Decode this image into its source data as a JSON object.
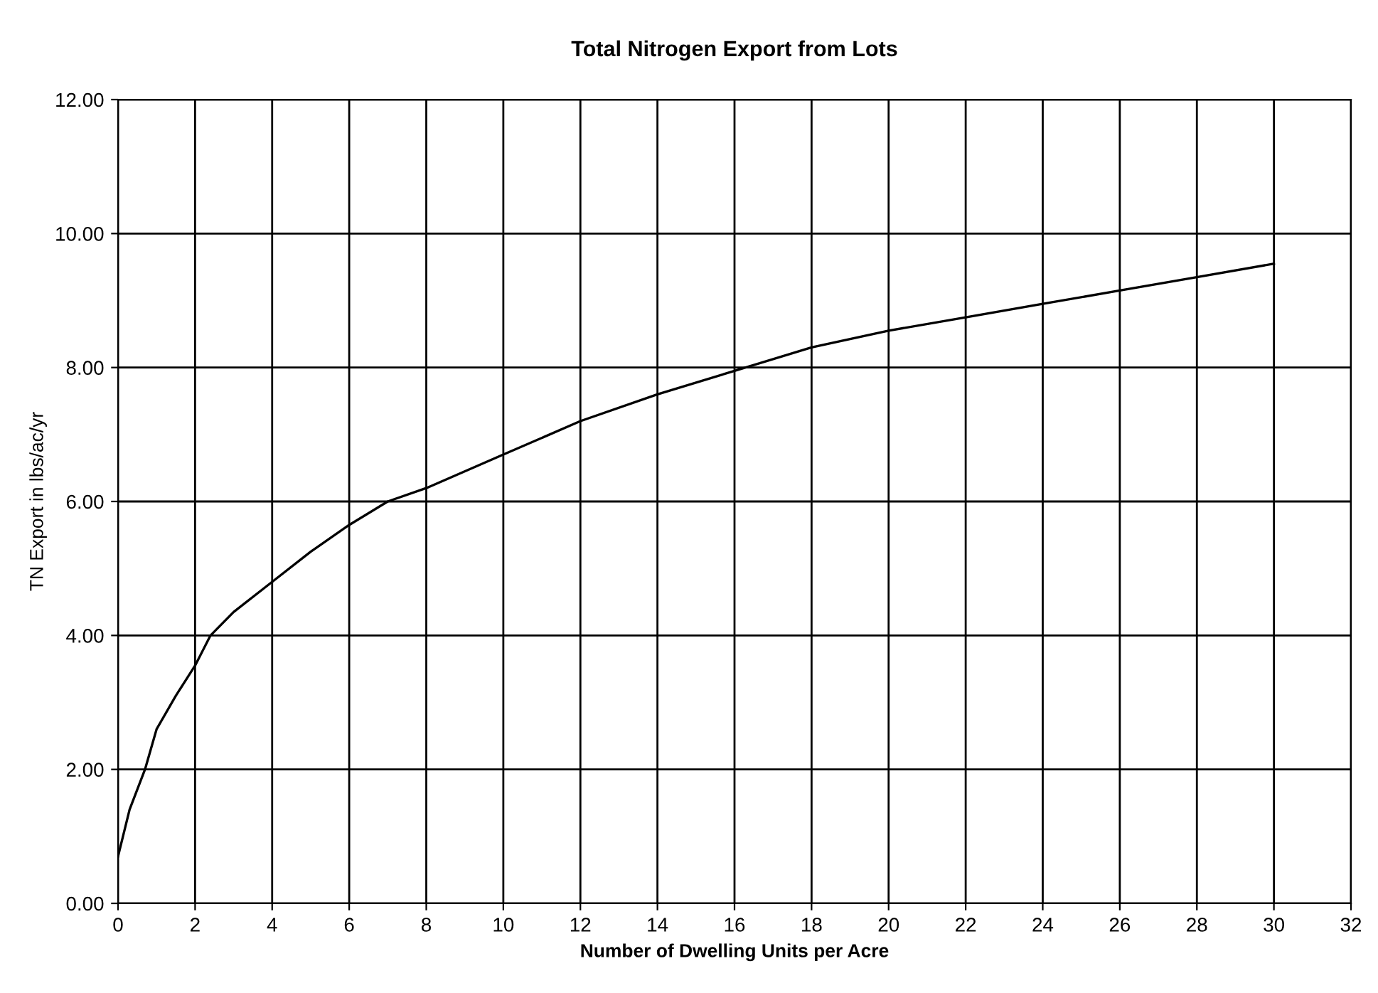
{
  "chart_data": {
    "type": "line",
    "title": "Total Nitrogen Export from Lots",
    "xlabel": "Number of Dwelling Units per Acre",
    "ylabel": "TN Export in lbs/ac/yr",
    "x": [
      0,
      0.3,
      0.7,
      1,
      1.5,
      2,
      2.4,
      3,
      4,
      5,
      6,
      7,
      8,
      10,
      12,
      14,
      16,
      18,
      20,
      22,
      24,
      26,
      28,
      30
    ],
    "series": [
      {
        "color": "#000000",
        "values": [
          0.7,
          1.4,
          2.0,
          2.6,
          3.1,
          3.55,
          4.0,
          4.35,
          4.8,
          5.25,
          5.65,
          6.0,
          6.2,
          6.7,
          7.2,
          7.6,
          7.95,
          8.3,
          8.55,
          8.75,
          8.95,
          9.15,
          9.35,
          9.55
        ]
      }
    ],
    "xlim": [
      0,
      32
    ],
    "xticks": [
      0,
      2,
      4,
      6,
      8,
      10,
      12,
      14,
      16,
      18,
      20,
      22,
      24,
      26,
      28,
      30,
      32
    ],
    "ylim": [
      0,
      12
    ],
    "yticks": [
      {
        "value": 0,
        "label": "0.00"
      },
      {
        "value": 2,
        "label": "2.00"
      },
      {
        "value": 4,
        "label": "4.00"
      },
      {
        "value": 6,
        "label": "6.00"
      },
      {
        "value": 8,
        "label": "8.00"
      },
      {
        "value": 10,
        "label": "10.00"
      },
      {
        "value": 12,
        "label": "12.00"
      }
    ],
    "grid": true,
    "legend": false,
    "marker": "none",
    "line_style": "solid"
  }
}
